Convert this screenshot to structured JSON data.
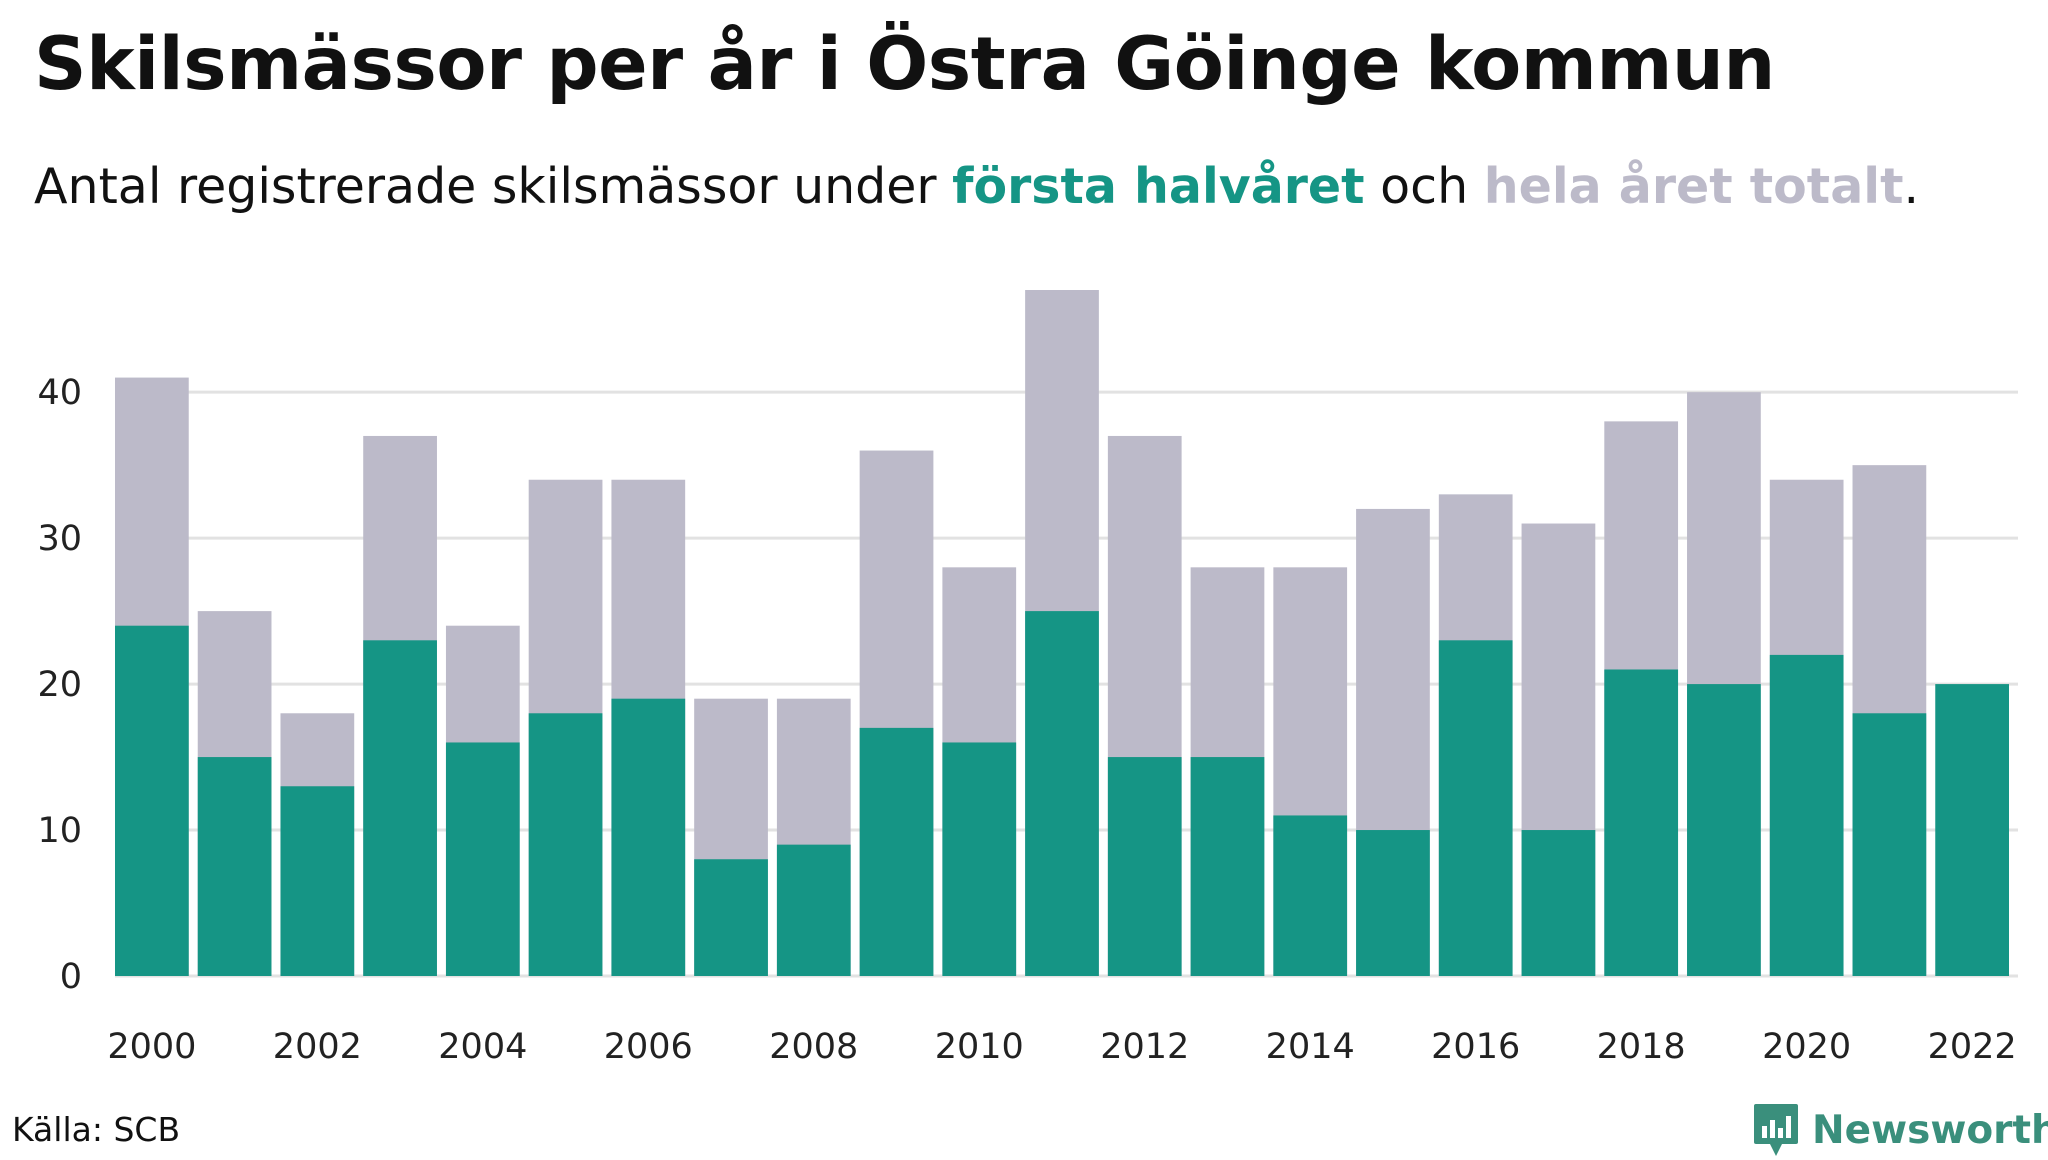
{
  "title": "Skilsmässor per år i Östra Göinge kommun",
  "subtitle": {
    "prefix": "Antal registrerade skilsmässor under ",
    "highlight1": "första halvåret",
    "middle": " och ",
    "highlight2": "hela året totalt",
    "suffix": "."
  },
  "source": "Källa: SCB",
  "brand": "Newsworthy",
  "colors": {
    "first_half": "#159585",
    "full_year": "#bcbac9",
    "grid": "#e2e2e2",
    "brand": "#3a8f7c"
  },
  "chart_data": {
    "type": "bar",
    "stacking": "overlay",
    "categories": [
      "2000",
      "2001",
      "2002",
      "2003",
      "2004",
      "2005",
      "2006",
      "2007",
      "2008",
      "2009",
      "2010",
      "2011",
      "2012",
      "2013",
      "2014",
      "2015",
      "2016",
      "2017",
      "2018",
      "2019",
      "2020",
      "2021",
      "2022"
    ],
    "x_tick_labels": [
      "2000",
      "2002",
      "2004",
      "2006",
      "2008",
      "2010",
      "2012",
      "2014",
      "2016",
      "2018",
      "2020",
      "2022"
    ],
    "y_ticks": [
      0,
      10,
      20,
      30,
      40
    ],
    "ylim": [
      0,
      47
    ],
    "grid": true,
    "series": [
      {
        "name": "hela året totalt",
        "values": [
          41,
          25,
          18,
          37,
          24,
          34,
          34,
          19,
          19,
          36,
          28,
          47,
          37,
          28,
          28,
          32,
          33,
          31,
          38,
          40,
          34,
          35,
          null
        ]
      },
      {
        "name": "första halvåret",
        "values": [
          24,
          15,
          13,
          23,
          16,
          18,
          19,
          8,
          9,
          17,
          16,
          25,
          15,
          15,
          11,
          10,
          23,
          10,
          21,
          20,
          22,
          18,
          20
        ]
      }
    ]
  }
}
